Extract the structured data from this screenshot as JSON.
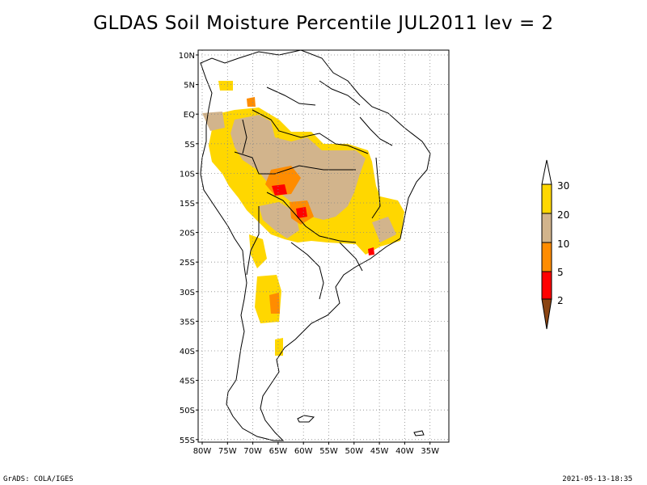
{
  "title": "GLDAS Soil Moisture Percentile JUL2011 lev = 2",
  "footer": {
    "left": "GrADS: COLA/IGES",
    "right": "2021-05-13-18:35"
  },
  "map": {
    "lat_labels": [
      "10N",
      "5N",
      "EQ",
      "5S",
      "10S",
      "15S",
      "20S",
      "25S",
      "30S",
      "35S",
      "40S",
      "45S",
      "50S",
      "55S"
    ],
    "lon_labels": [
      "80W",
      "75W",
      "70W",
      "65W",
      "60W",
      "55W",
      "50W",
      "45W",
      "40W",
      "35W"
    ],
    "grid_dotted": true
  },
  "legend": {
    "labels": [
      "30",
      "20",
      "10",
      "5",
      "2"
    ],
    "colors": {
      "top_open": "#ffffff",
      "band_20_30": "#ffd700",
      "band_10_20": "#d2b48c",
      "band_5_10": "#ff8c00",
      "band_2_5": "#ff0000",
      "bottom_open": "#8b4513"
    }
  },
  "colors": {
    "yellow": "#ffd700",
    "tan": "#d2b48c",
    "orange": "#ff8c00",
    "red": "#ff0000",
    "brown": "#8b4513"
  }
}
